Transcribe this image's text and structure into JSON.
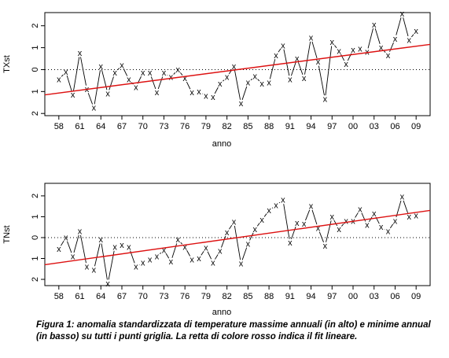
{
  "chart_data": [
    {
      "type": "line",
      "panel": "top",
      "xlabel": "anno",
      "ylabel": "TXst",
      "xlim": [
        1956,
        2011
      ],
      "ylim": [
        -2.1,
        2.6
      ],
      "ytick_values": [
        -2,
        -1,
        0,
        1,
        2
      ],
      "ytick_labels": [
        "2",
        "1",
        "0",
        "1",
        "2"
      ],
      "xtick_values": [
        1958,
        1961,
        1964,
        1967,
        1970,
        1973,
        1976,
        1979,
        1982,
        1985,
        1988,
        1991,
        1994,
        1997,
        2000,
        2003,
        2006,
        2009
      ],
      "xtick_labels": [
        "58",
        "61",
        "64",
        "67",
        "70",
        "73",
        "76",
        "79",
        "82",
        "85",
        "88",
        "91",
        "94",
        "97",
        "00",
        "03",
        "06",
        "09"
      ],
      "reference_line": 0,
      "marker": "x",
      "colors": {
        "data": "#000000",
        "fit": "#dd1111"
      },
      "x": [
        1958,
        1959,
        1960,
        1961,
        1962,
        1963,
        1964,
        1965,
        1966,
        1967,
        1968,
        1969,
        1970,
        1971,
        1972,
        1973,
        1974,
        1975,
        1976,
        1977,
        1978,
        1979,
        1980,
        1981,
        1982,
        1983,
        1984,
        1985,
        1986,
        1987,
        1988,
        1989,
        1990,
        1991,
        1992,
        1993,
        1994,
        1995,
        1996,
        1997,
        1998,
        1999,
        2000,
        2001,
        2002,
        2003,
        2004,
        2005,
        2006,
        2007,
        2008,
        2009
      ],
      "y": [
        -0.45,
        -0.1,
        -1.15,
        0.75,
        -0.9,
        -1.75,
        0.15,
        -1.1,
        -0.15,
        0.2,
        -0.45,
        -0.8,
        -0.15,
        -0.15,
        -1.05,
        -0.15,
        -0.35,
        0.0,
        -0.4,
        -1.05,
        -1.0,
        -1.2,
        -1.25,
        -0.65,
        -0.35,
        0.15,
        -1.55,
        -0.6,
        -0.3,
        -0.65,
        -0.6,
        0.65,
        1.1,
        -0.45,
        0.5,
        -0.4,
        1.45,
        0.35,
        -1.35,
        1.25,
        0.85,
        0.25,
        0.9,
        0.95,
        0.8,
        2.05,
        1.0,
        0.65,
        1.4,
        2.55,
        1.35,
        1.75
      ],
      "fit": {
        "x": [
          1956,
          2011
        ],
        "y": [
          -1.15,
          1.15
        ]
      }
    },
    {
      "type": "line",
      "panel": "bottom",
      "xlabel": "anno",
      "ylabel": "TNst",
      "xlim": [
        1956,
        2011
      ],
      "ylim": [
        -2.3,
        2.6
      ],
      "ytick_values": [
        -2,
        -1,
        0,
        1,
        2
      ],
      "ytick_labels": [
        "2",
        "1",
        "0",
        "1",
        "2"
      ],
      "xtick_values": [
        1958,
        1961,
        1964,
        1967,
        1970,
        1973,
        1976,
        1979,
        1982,
        1985,
        1988,
        1991,
        1994,
        1997,
        2000,
        2003,
        2006,
        2009
      ],
      "xtick_labels": [
        "58",
        "61",
        "64",
        "67",
        "70",
        "73",
        "76",
        "79",
        "82",
        "85",
        "88",
        "91",
        "94",
        "97",
        "00",
        "03",
        "06",
        "09"
      ],
      "reference_line": 0,
      "marker": "x",
      "colors": {
        "data": "#000000",
        "fit": "#dd1111"
      },
      "x": [
        1958,
        1959,
        1960,
        1961,
        1962,
        1963,
        1964,
        1965,
        1966,
        1967,
        1968,
        1969,
        1970,
        1971,
        1972,
        1973,
        1974,
        1975,
        1976,
        1977,
        1978,
        1979,
        1980,
        1981,
        1982,
        1983,
        1984,
        1985,
        1986,
        1987,
        1988,
        1989,
        1990,
        1991,
        1992,
        1993,
        1994,
        1995,
        1996,
        1997,
        1998,
        1999,
        2000,
        2001,
        2002,
        2003,
        2004,
        2005,
        2006,
        2007,
        2008,
        2009
      ],
      "y": [
        -0.55,
        0.0,
        -0.9,
        0.3,
        -1.4,
        -1.55,
        -0.1,
        -2.2,
        -0.45,
        -0.35,
        -0.45,
        -1.4,
        -1.2,
        -1.05,
        -0.9,
        -0.6,
        -1.15,
        -0.1,
        -0.45,
        -1.05,
        -1.0,
        -0.5,
        -1.2,
        -0.65,
        0.25,
        0.75,
        -1.25,
        -0.3,
        0.4,
        0.85,
        1.3,
        1.55,
        1.8,
        -0.25,
        0.7,
        0.65,
        1.5,
        0.45,
        -0.4,
        1.0,
        0.4,
        0.8,
        0.8,
        1.35,
        0.6,
        1.15,
        0.5,
        0.3,
        0.8,
        1.95,
        1.0,
        1.05
      ],
      "fit": {
        "x": [
          1956,
          2011
        ],
        "y": [
          -1.3,
          1.3
        ]
      }
    }
  ],
  "caption": "Figura 1: anomalia standardizzata di temperature massime annuali (in alto) e minime annual (in basso) su tutti i punti griglia. La retta di colore rosso indica il fit lineare."
}
